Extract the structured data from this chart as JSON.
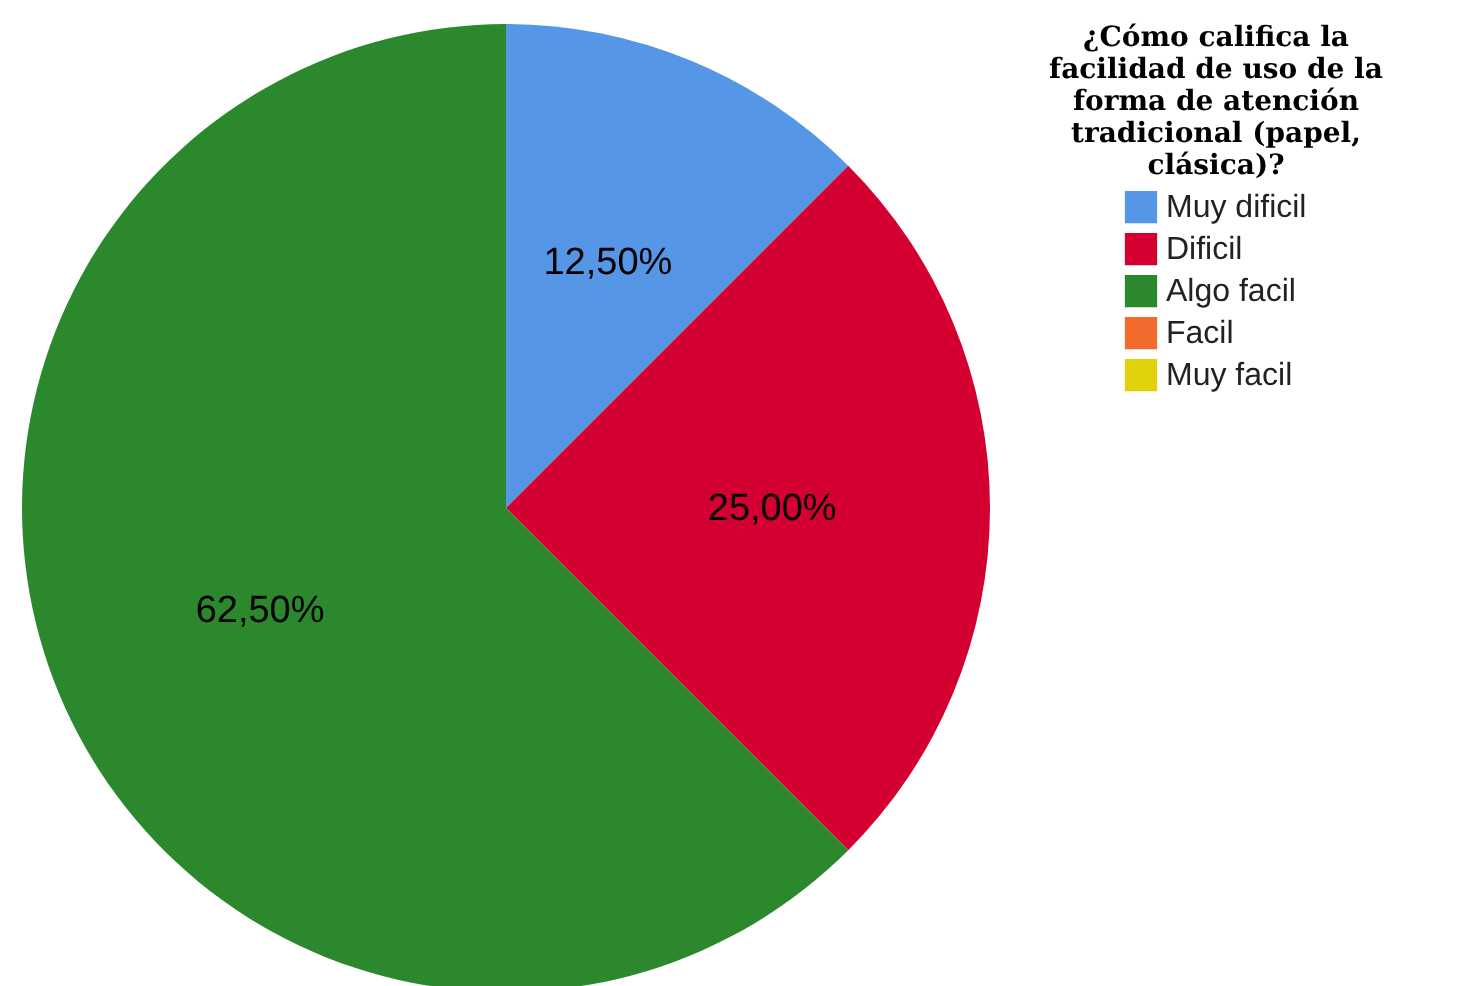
{
  "chart_data": {
    "type": "pie",
    "categories": [
      "Muy dificil",
      "Dificil",
      "Algo facil",
      "Facil",
      "Muy facil"
    ],
    "values": [
      12.5,
      25,
      62.5,
      0,
      0
    ],
    "colors": [
      "#5596e6",
      "#d50032",
      "#2c882c",
      "#f26a2c",
      "#e2d20c"
    ],
    "value_labels": [
      "12,50%",
      "25,00%",
      "62,50%",
      null,
      null
    ],
    "legend_title": "¿Cómo califica la facilidad de uso de la forma de atención tradicional (papel, clásica)?",
    "legend": "right"
  }
}
